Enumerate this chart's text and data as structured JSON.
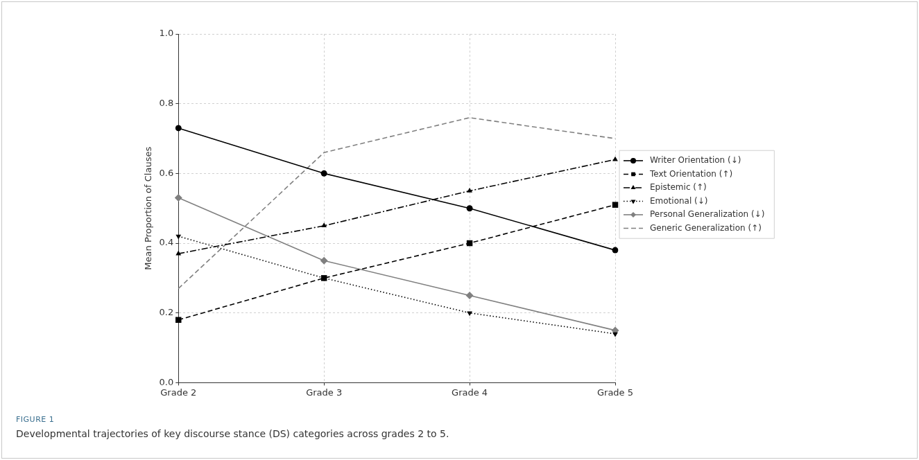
{
  "chart_data": {
    "type": "line",
    "ylabel": "Mean Proportion of Clauses",
    "categories": [
      "Grade 2",
      "Grade 3",
      "Grade 4",
      "Grade 5"
    ],
    "ylim": [
      0,
      1
    ],
    "yticks": [
      {
        "value": 0,
        "label": "0.0"
      },
      {
        "value": 0.2,
        "label": "0.2"
      },
      {
        "value": 0.4,
        "label": "0.4"
      },
      {
        "value": 0.6,
        "label": "0.6"
      },
      {
        "value": 0.8,
        "label": "0.8"
      },
      {
        "value": 1,
        "label": "1.0"
      }
    ],
    "grid": true,
    "legend": "right",
    "annotations": [
      "FIGURE 1",
      "Developmental trajectories of key discourse stance (DS) categories across grades 2 to 5."
    ],
    "series": [
      {
        "name": "Writer Orientation (↓)",
        "color": "#000000",
        "marker": "circle",
        "line_style": "solid",
        "values": [
          0.73,
          0.6,
          0.5,
          0.38
        ]
      },
      {
        "name": "Text Orientation (↑)",
        "color": "#000000",
        "marker": "square",
        "line_style": "dashed",
        "values": [
          0.18,
          0.3,
          0.4,
          0.51
        ]
      },
      {
        "name": "Epistemic (↑)",
        "color": "#000000",
        "marker": "triangle",
        "line_style": "dashdot",
        "values": [
          0.37,
          0.45,
          0.55,
          0.64
        ]
      },
      {
        "name": "Emotional (↓)",
        "color": "#000000",
        "marker": "triangle_down",
        "line_style": "dotted",
        "values": [
          0.42,
          0.3,
          0.2,
          0.14
        ]
      },
      {
        "name": "Personal Generalization (↓)",
        "color": "#808080",
        "marker": "diamond",
        "line_style": "solid",
        "values": [
          0.53,
          0.35,
          0.25,
          0.15
        ]
      },
      {
        "name": "Generic Generalization (↑)",
        "color": "#808080",
        "marker": "none",
        "line_style": "dashed",
        "values": [
          0.27,
          0.66,
          0.76,
          0.7
        ]
      }
    ]
  }
}
